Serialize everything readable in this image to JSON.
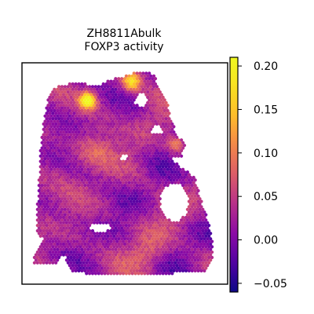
{
  "chart_data": {
    "type": "heatmap",
    "title_line1": "ZH8811Abulk",
    "title_line2": "FOXP3 activity",
    "xlabel": "",
    "ylabel": "",
    "colormap": "plasma",
    "colorbar": {
      "vmin": -0.06,
      "vmax": 0.21,
      "ticks": [
        -0.05,
        0.0,
        0.05,
        0.1,
        0.15,
        0.2
      ],
      "tick_labels": [
        "−0.05",
        "0.00",
        "0.05",
        "0.10",
        "0.15",
        "0.20"
      ],
      "placement": "right"
    },
    "grid": false,
    "axis_ticks": false,
    "hotspots": [
      {
        "region": "upper-left edge",
        "value": 0.2
      },
      {
        "region": "top center",
        "value": 0.16
      },
      {
        "region": "right lobe",
        "value": 0.11
      }
    ],
    "typical_range": [
      -0.03,
      0.09
    ]
  },
  "colors": {
    "background": "#ffffff",
    "axes_frame": "#000000",
    "low": "#0d0887",
    "mid": "#cc4778",
    "high": "#f0f921"
  }
}
